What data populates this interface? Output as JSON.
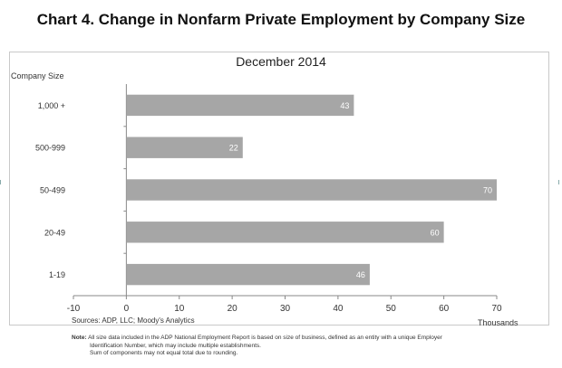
{
  "chart_data": {
    "type": "bar",
    "orientation": "horizontal",
    "title": "Chart 4. Change in Nonfarm Private Employment by Company Size",
    "subtitle": "December 2014",
    "ylabel": "Company Size",
    "xlabel": "Thousands",
    "categories": [
      "1,000 +",
      "500-999",
      "50-499",
      "20-49",
      "1-19"
    ],
    "values": [
      43,
      22,
      70,
      60,
      46
    ],
    "data_labels": [
      "43",
      "22",
      "70",
      "60",
      "46"
    ],
    "xlim": [
      -10,
      70
    ],
    "xticks": [
      "-10",
      "0",
      "10",
      "20",
      "30",
      "40",
      "50",
      "60",
      "70"
    ],
    "bar_color": "#a6a6a6",
    "label_color": "#ffffff",
    "grid": false
  },
  "footer": {
    "sources": "Sources: ADP, LLC; Moody's Analytics",
    "note_label": "Note:",
    "note_lines": [
      "All size data included in the ADP National Employment Report is based on size of business, defined as an entity with a unique Employer",
      "Identification Number, which may include multiple establishments.",
      "Sum of components may not equal total due to rounding."
    ]
  }
}
